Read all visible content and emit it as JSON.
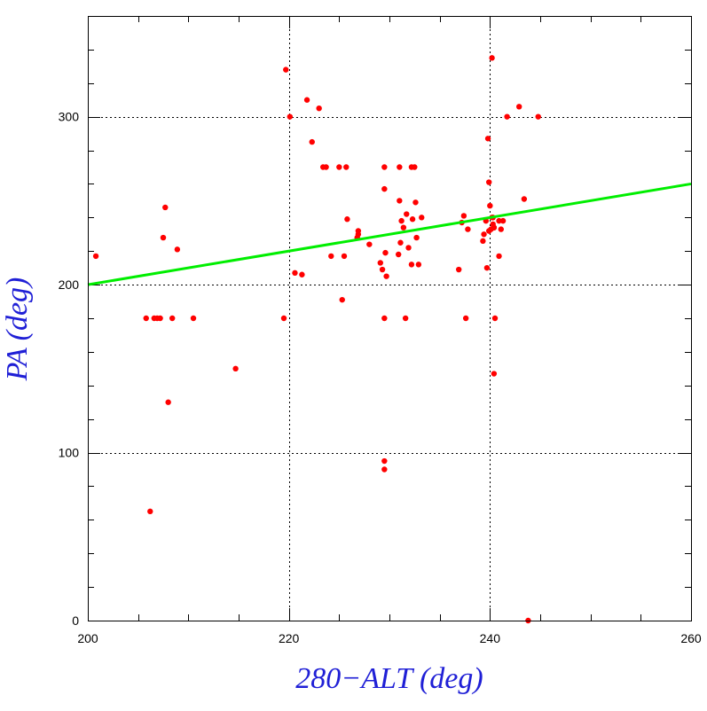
{
  "chart_data": {
    "type": "scatter",
    "title": "",
    "xlabel": "280−ALT (deg)",
    "ylabel": "PA (deg)",
    "xlim": [
      200,
      260
    ],
    "ylim": [
      0,
      360
    ],
    "xticks": [
      200,
      220,
      240,
      260
    ],
    "xtick_labels": [
      "200",
      "220",
      "240",
      "260"
    ],
    "yticks": [
      0,
      100,
      200,
      300
    ],
    "ytick_labels": [
      "0",
      "100",
      "200",
      "300"
    ],
    "x_minor_step": 5,
    "y_minor_step": 20,
    "grid": "dotted",
    "grid_x": [
      220,
      240
    ],
    "grid_y": [
      100,
      200,
      300
    ],
    "axis_title_color": "#1f1fd6",
    "series": [
      {
        "kind": "scatter",
        "color": "#ff0000",
        "points": [
          [
            200.8,
            217
          ],
          [
            205.8,
            180
          ],
          [
            206.2,
            65
          ],
          [
            206.6,
            180
          ],
          [
            206.9,
            180
          ],
          [
            207.2,
            180
          ],
          [
            207.5,
            228
          ],
          [
            207.7,
            246
          ],
          [
            208.0,
            130
          ],
          [
            208.4,
            180
          ],
          [
            208.9,
            221
          ],
          [
            210.5,
            180
          ],
          [
            214.7,
            150
          ],
          [
            219.5,
            180
          ],
          [
            219.7,
            328
          ],
          [
            220.1,
            300
          ],
          [
            220.6,
            207
          ],
          [
            221.3,
            206
          ],
          [
            221.8,
            310
          ],
          [
            222.3,
            285
          ],
          [
            223.0,
            305
          ],
          [
            223.4,
            270
          ],
          [
            223.7,
            270
          ],
          [
            224.2,
            217
          ],
          [
            225.0,
            270
          ],
          [
            225.3,
            191
          ],
          [
            225.5,
            217
          ],
          [
            225.7,
            270
          ],
          [
            225.8,
            239
          ],
          [
            226.8,
            228
          ],
          [
            226.9,
            232
          ],
          [
            226.9,
            230
          ],
          [
            228.0,
            224
          ],
          [
            229.1,
            213
          ],
          [
            229.3,
            209
          ],
          [
            229.5,
            95
          ],
          [
            229.5,
            90
          ],
          [
            229.5,
            180
          ],
          [
            229.5,
            270
          ],
          [
            229.5,
            257
          ],
          [
            229.6,
            219
          ],
          [
            229.7,
            205
          ],
          [
            230.9,
            218
          ],
          [
            231.0,
            250
          ],
          [
            231.0,
            270
          ],
          [
            231.1,
            225
          ],
          [
            231.2,
            238
          ],
          [
            231.4,
            234
          ],
          [
            231.6,
            180
          ],
          [
            231.7,
            242
          ],
          [
            231.9,
            222
          ],
          [
            232.2,
            212
          ],
          [
            232.2,
            270
          ],
          [
            232.3,
            239
          ],
          [
            232.5,
            270
          ],
          [
            232.6,
            249
          ],
          [
            232.7,
            228
          ],
          [
            232.9,
            212
          ],
          [
            233.2,
            240
          ],
          [
            236.9,
            209
          ],
          [
            237.2,
            237
          ],
          [
            237.4,
            241
          ],
          [
            237.6,
            180
          ],
          [
            237.8,
            233
          ],
          [
            239.3,
            226
          ],
          [
            239.4,
            230
          ],
          [
            239.6,
            238
          ],
          [
            239.7,
            210
          ],
          [
            239.8,
            287
          ],
          [
            239.9,
            261
          ],
          [
            239.9,
            232
          ],
          [
            240.0,
            247
          ],
          [
            240.1,
            233
          ],
          [
            240.2,
            240
          ],
          [
            240.2,
            335
          ],
          [
            240.3,
            240
          ],
          [
            240.3,
            236
          ],
          [
            240.4,
            234
          ],
          [
            240.4,
            234
          ],
          [
            240.4,
            147
          ],
          [
            240.5,
            180
          ],
          [
            240.9,
            238
          ],
          [
            240.9,
            217
          ],
          [
            241.1,
            233
          ],
          [
            241.3,
            238
          ],
          [
            241.7,
            300
          ],
          [
            242.9,
            306
          ],
          [
            243.4,
            251
          ],
          [
            243.8,
            0
          ],
          [
            244.8,
            300
          ]
        ]
      },
      {
        "kind": "line",
        "color": "#00ee00",
        "points": [
          [
            200,
            200
          ],
          [
            260,
            260
          ]
        ]
      }
    ]
  }
}
